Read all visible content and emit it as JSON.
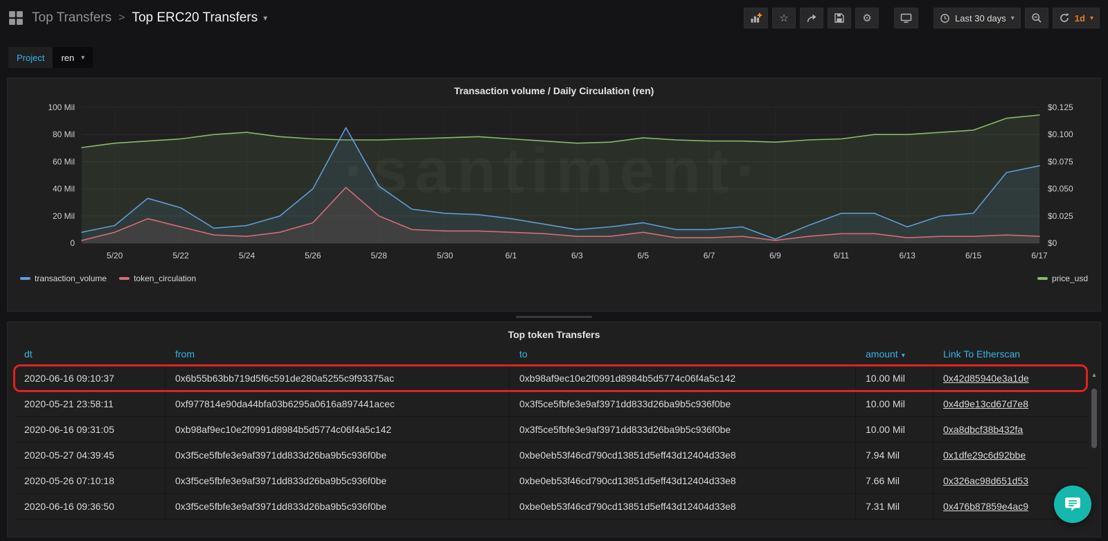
{
  "navbar": {
    "breadcrumb": {
      "root": "Top Transfers",
      "separator": ">",
      "current": "Top ERC20 Transfers"
    },
    "time_picker": {
      "label": "Last 30 days"
    },
    "refresh_interval": "1d",
    "icon_names": [
      "add-panel-icon",
      "star-icon",
      "share-icon",
      "save-icon",
      "gear-icon",
      "tv-icon",
      "clock-icon",
      "zoom-out-icon",
      "refresh-icon"
    ]
  },
  "glyphs": {
    "caret_down": "▾",
    "scroll_up": "▲",
    "star": "☆",
    "gear": "⚙"
  },
  "submenu": {
    "variable_label": "Project",
    "variable_value": "ren"
  },
  "chart_panel": {
    "title": "Transaction volume / Daily Circulation (ren)",
    "watermark": "·santiment·"
  },
  "chart_data": {
    "type": "line",
    "title": "Transaction volume / Daily Circulation (ren)",
    "x": [
      "5/19",
      "5/20",
      "5/21",
      "5/22",
      "5/23",
      "5/24",
      "5/25",
      "5/26",
      "5/27",
      "5/28",
      "5/29",
      "5/30",
      "5/31",
      "6/1",
      "6/2",
      "6/3",
      "6/4",
      "6/5",
      "6/6",
      "6/7",
      "6/8",
      "6/9",
      "6/10",
      "6/11",
      "6/12",
      "6/13",
      "6/14",
      "6/15",
      "6/16",
      "6/17"
    ],
    "x_tick_labels": [
      "5/20",
      "5/22",
      "5/24",
      "5/26",
      "5/28",
      "5/30",
      "6/1",
      "6/3",
      "6/5",
      "6/7",
      "6/9",
      "6/11",
      "6/13",
      "6/15",
      "6/17"
    ],
    "series": [
      {
        "name": "transaction_volume",
        "axis": "left",
        "color": "#5f9bd5",
        "unit": "Mil",
        "values": [
          8,
          13,
          33,
          26,
          11,
          13,
          20,
          40,
          85,
          42,
          25,
          22,
          21,
          18,
          14,
          10,
          12,
          15,
          10,
          10,
          12,
          3,
          13,
          22,
          22,
          12,
          20,
          22,
          52,
          57
        ]
      },
      {
        "name": "token_circulation",
        "axis": "left",
        "color": "#d66a75",
        "unit": "Mil",
        "values": [
          2,
          8,
          18,
          12,
          6,
          5,
          8,
          15,
          41,
          20,
          10,
          9,
          9,
          8,
          7,
          5,
          5,
          8,
          4,
          4,
          5,
          2,
          5,
          7,
          7,
          4,
          5,
          5,
          6,
          5
        ]
      },
      {
        "name": "price_usd",
        "axis": "right",
        "color": "#87bb69",
        "unit": "USD",
        "values": [
          0.088,
          0.092,
          0.094,
          0.096,
          0.1,
          0.102,
          0.098,
          0.096,
          0.095,
          0.095,
          0.096,
          0.097,
          0.098,
          0.096,
          0.094,
          0.092,
          0.093,
          0.097,
          0.095,
          0.094,
          0.094,
          0.093,
          0.095,
          0.096,
          0.1,
          0.1,
          0.102,
          0.104,
          0.115,
          0.118
        ]
      }
    ],
    "left_axis": {
      "min": 0,
      "max": 100,
      "ticks": [
        "0",
        "20 Mil",
        "40 Mil",
        "60 Mil",
        "80 Mil",
        "100 Mil"
      ]
    },
    "right_axis": {
      "min": 0,
      "max": 0.125,
      "ticks": [
        "$0",
        "$0.025",
        "$0.050",
        "$0.075",
        "$0.100",
        "$0.125"
      ]
    },
    "grid": true,
    "legend_position": "bottom"
  },
  "table_panel": {
    "title": "Top token Transfers",
    "columns": [
      "dt",
      "from",
      "to",
      "amount",
      "Link To Etherscan"
    ],
    "sort_column": "amount",
    "rows": [
      {
        "dt": "2020-06-16 09:10:37",
        "from": "0x6b55b63bb719d5f6c591de280a5255c9f93375ac",
        "to": "0xb98af9ec10e2f0991d8984b5d5774c06f4a5c142",
        "amount": "10.00 Mil",
        "link": "0x42d85940e3a1de",
        "highlighted": true
      },
      {
        "dt": "2020-05-21 23:58:11",
        "from": "0xf977814e90da44bfa03b6295a0616a897441acec",
        "to": "0x3f5ce5fbfe3e9af3971dd833d26ba9b5c936f0be",
        "amount": "10.00 Mil",
        "link": "0x4d9e13cd67d7e8",
        "highlighted": false
      },
      {
        "dt": "2020-06-16 09:31:05",
        "from": "0xb98af9ec10e2f0991d8984b5d5774c06f4a5c142",
        "to": "0x3f5ce5fbfe3e9af3971dd833d26ba9b5c936f0be",
        "amount": "10.00 Mil",
        "link": "0xa8dbcf38b432fa",
        "highlighted": false
      },
      {
        "dt": "2020-05-27 04:39:45",
        "from": "0x3f5ce5fbfe3e9af3971dd833d26ba9b5c936f0be",
        "to": "0xbe0eb53f46cd790cd13851d5eff43d12404d33e8",
        "amount": "7.94 Mil",
        "link": "0x1dfe29c6d92bbe",
        "highlighted": false
      },
      {
        "dt": "2020-05-26 07:10:18",
        "from": "0x3f5ce5fbfe3e9af3971dd833d26ba9b5c936f0be",
        "to": "0xbe0eb53f46cd790cd13851d5eff43d12404d33e8",
        "amount": "7.66 Mil",
        "link": "0x326ac98d651d53",
        "highlighted": false
      },
      {
        "dt": "2020-06-16 09:36:50",
        "from": "0x3f5ce5fbfe3e9af3971dd833d26ba9b5c936f0be",
        "to": "0xbe0eb53f46cd790cd13851d5eff43d12404d33e8",
        "amount": "7.31 Mil",
        "link": "0x476b87859e4ac9",
        "highlighted": false
      }
    ]
  },
  "colors": {
    "accent_cyan": "#33b5e5",
    "refresh_orange": "#eb7b18",
    "highlight_red": "#e2211c",
    "intercom_teal": "#16b8ad",
    "panel_bg": "#1f1f20",
    "page_bg": "#141416"
  }
}
